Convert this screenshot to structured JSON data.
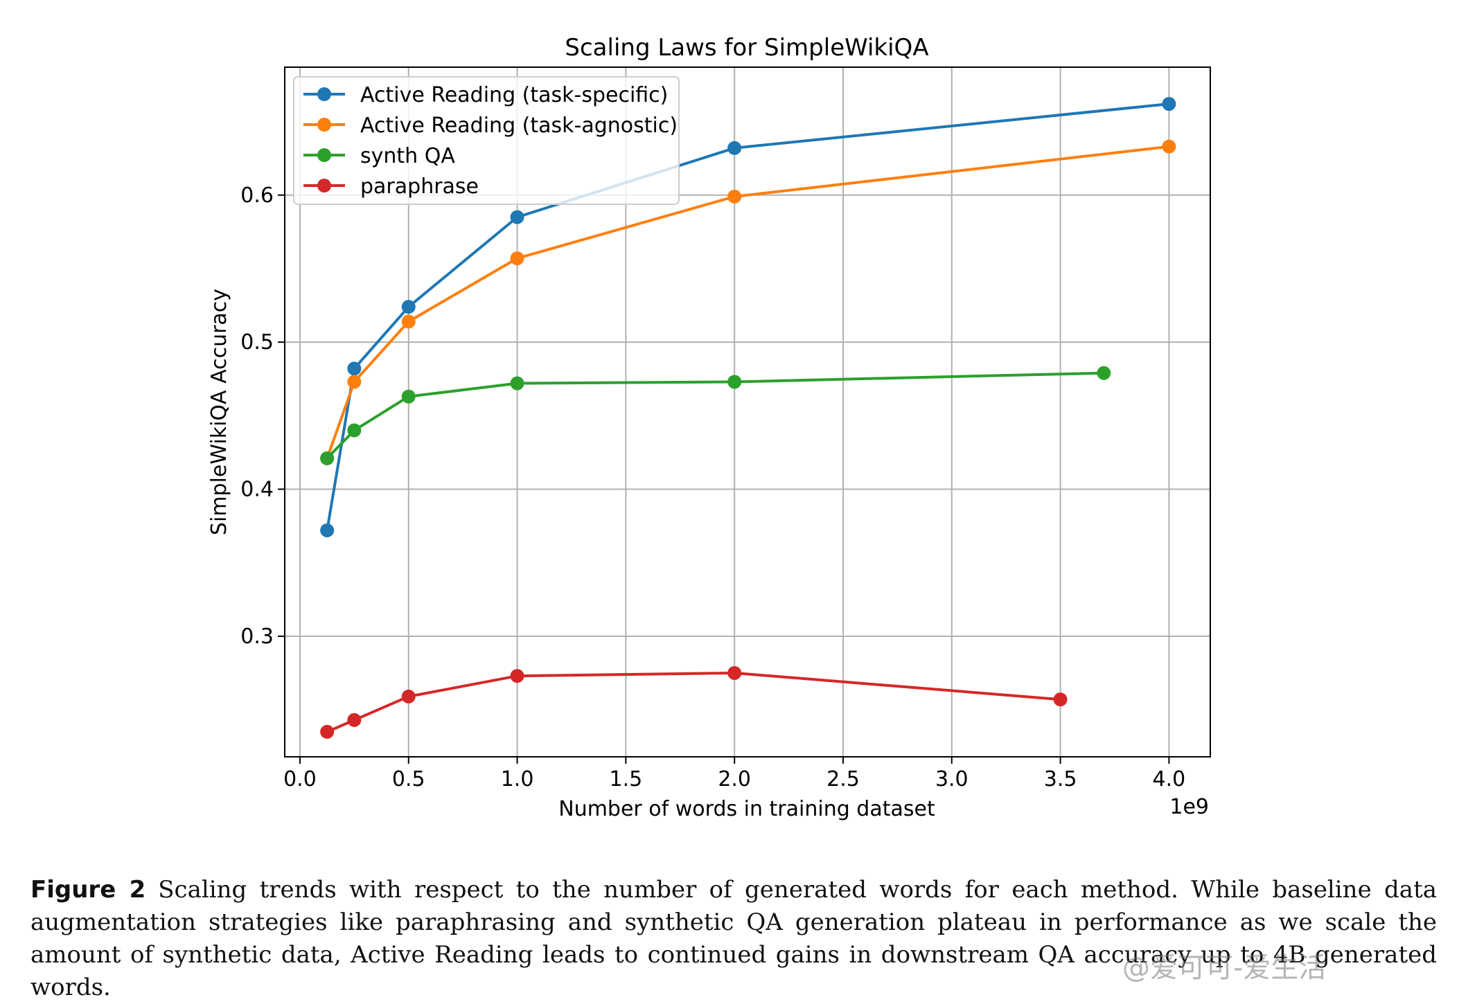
{
  "chart_data": {
    "type": "line",
    "title": "Scaling Laws for SimpleWikiQA",
    "xlabel": "Number of words in training dataset",
    "ylabel": "SimpleWikiQA Accuracy",
    "x_offset_label": "1e9",
    "xlim": [
      -0.07,
      4.19
    ],
    "ylim": [
      0.218,
      0.687
    ],
    "xticks": [
      0.0,
      0.5,
      1.0,
      1.5,
      2.0,
      2.5,
      3.0,
      3.5,
      4.0
    ],
    "xtick_labels": [
      "0.0",
      "0.5",
      "1.0",
      "1.5",
      "2.0",
      "2.5",
      "3.0",
      "3.5",
      "4.0"
    ],
    "yticks": [
      0.3,
      0.4,
      0.5,
      0.6
    ],
    "ytick_labels": [
      "0.3",
      "0.4",
      "0.5",
      "0.6"
    ],
    "grid": true,
    "legend_position": "top-left",
    "series": [
      {
        "name": "Active Reading (task-specific)",
        "color": "#1f77b4",
        "x": [
          0.125,
          0.25,
          0.5,
          1.0,
          2.0,
          4.0
        ],
        "y": [
          0.372,
          0.482,
          0.524,
          0.585,
          0.632,
          0.662
        ]
      },
      {
        "name": "Active Reading (task-agnostic)",
        "color": "#ff7f0e",
        "x": [
          0.125,
          0.25,
          0.5,
          1.0,
          2.0,
          4.0
        ],
        "y": [
          0.421,
          0.473,
          0.514,
          0.557,
          0.599,
          0.633
        ]
      },
      {
        "name": "synth QA",
        "color": "#2ca02c",
        "x": [
          0.125,
          0.25,
          0.5,
          1.0,
          2.0,
          3.7
        ],
        "y": [
          0.421,
          0.44,
          0.463,
          0.472,
          0.473,
          0.479
        ]
      },
      {
        "name": "paraphrase",
        "color": "#d62728",
        "x": [
          0.125,
          0.25,
          0.5,
          1.0,
          2.0,
          3.5
        ],
        "y": [
          0.235,
          0.243,
          0.259,
          0.273,
          0.275,
          0.257
        ]
      }
    ]
  },
  "caption": {
    "label": "Figure 2",
    "text": "Scaling trends with respect to the number of generated words for each method. While baseline data augmentation strategies like paraphrasing and synthetic QA generation plateau in performance as we scale the amount of synthetic data, Active Reading leads to continued gains in downstream QA accuracy up to 4B generated words."
  },
  "watermark": "@爱可可-爱生活"
}
